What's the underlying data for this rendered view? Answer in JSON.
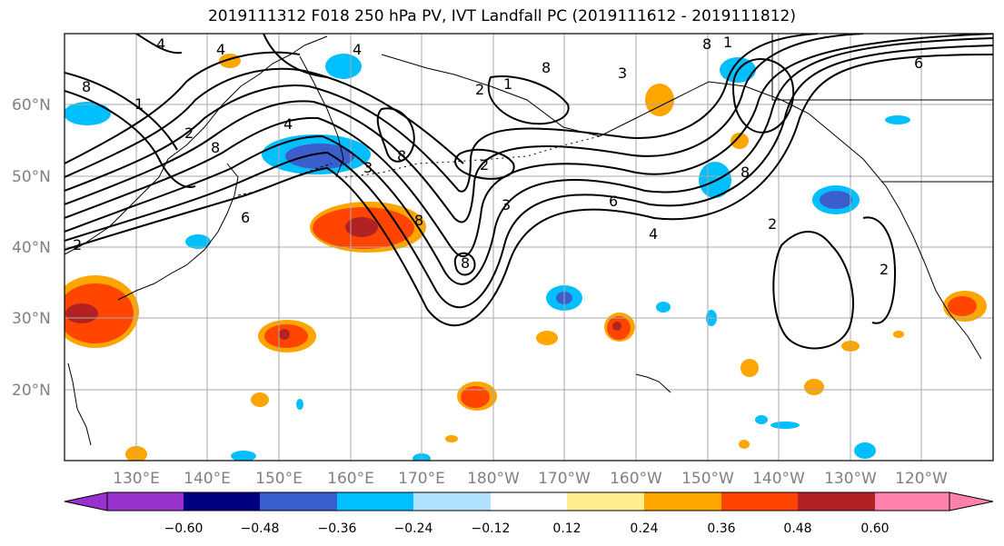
{
  "title": "2019111312 F018 250 hPa PV, IVT Landfall PC (2019111612 - 2019111812)",
  "map": {
    "projection": "plate-carree",
    "lon_range_deg_east": [
      120,
      250
    ],
    "lat_range_deg_north": [
      10,
      70
    ],
    "gridlines": true,
    "lat_labels": [
      "20°N",
      "30°N",
      "40°N",
      "50°N",
      "60°N"
    ],
    "lon_labels": [
      "130°E",
      "140°E",
      "150°E",
      "160°E",
      "170°E",
      "180°W",
      "170°W",
      "160°W",
      "150°W",
      "140°W",
      "130°W",
      "120°W"
    ],
    "contour_color": "#000000",
    "contour_labels": [
      "4",
      "4",
      "8",
      "8",
      "2",
      "6",
      "4",
      "4",
      "8",
      "2",
      "1",
      "8",
      "3",
      "1",
      "2",
      "3",
      "6",
      "4",
      "8",
      "8",
      "8",
      "2",
      "6",
      "8",
      "2",
      "1",
      "3",
      "2"
    ]
  },
  "colorbar": {
    "orientation": "horizontal",
    "extend": "both",
    "colors": [
      "#9932cc",
      "#000080",
      "#3a5fcd",
      "#00bfff",
      "#b0e2ff",
      "#ffffff",
      "#ffec8b",
      "#ffa500",
      "#ff4500",
      "#b22222",
      "#ff82ab"
    ],
    "tick_labels": [
      "−0.60",
      "−0.48",
      "−0.36",
      "−0.24",
      "−0.12",
      "0.12",
      "0.24",
      "0.36",
      "0.48",
      "0.60"
    ]
  }
}
